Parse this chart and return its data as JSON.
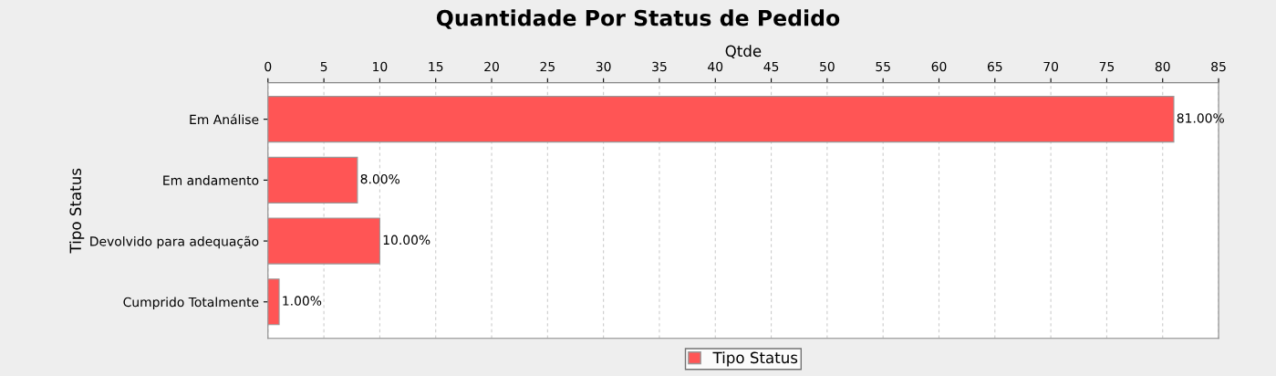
{
  "chart_data": {
    "type": "bar",
    "orientation": "horizontal",
    "title": "Quantidade Por Status de Pedido",
    "xlabel": "Qtde",
    "ylabel": "Tipo Status",
    "categories": [
      "Em Análise",
      "Em andamento",
      "Devolvido para adequação",
      "Cumprido Totalmente"
    ],
    "series": [
      {
        "name": "Tipo Status",
        "color": "#ff5555",
        "values": [
          81,
          8,
          10,
          1
        ],
        "value_labels": [
          "81.00%",
          "8.00%",
          "10.00%",
          "1.00%"
        ]
      }
    ],
    "xlim": [
      0,
      85
    ],
    "xticks": [
      0,
      5,
      10,
      15,
      20,
      25,
      30,
      35,
      40,
      45,
      50,
      55,
      60,
      65,
      70,
      75,
      80,
      85
    ],
    "grid": "x",
    "legend": "bottom"
  }
}
